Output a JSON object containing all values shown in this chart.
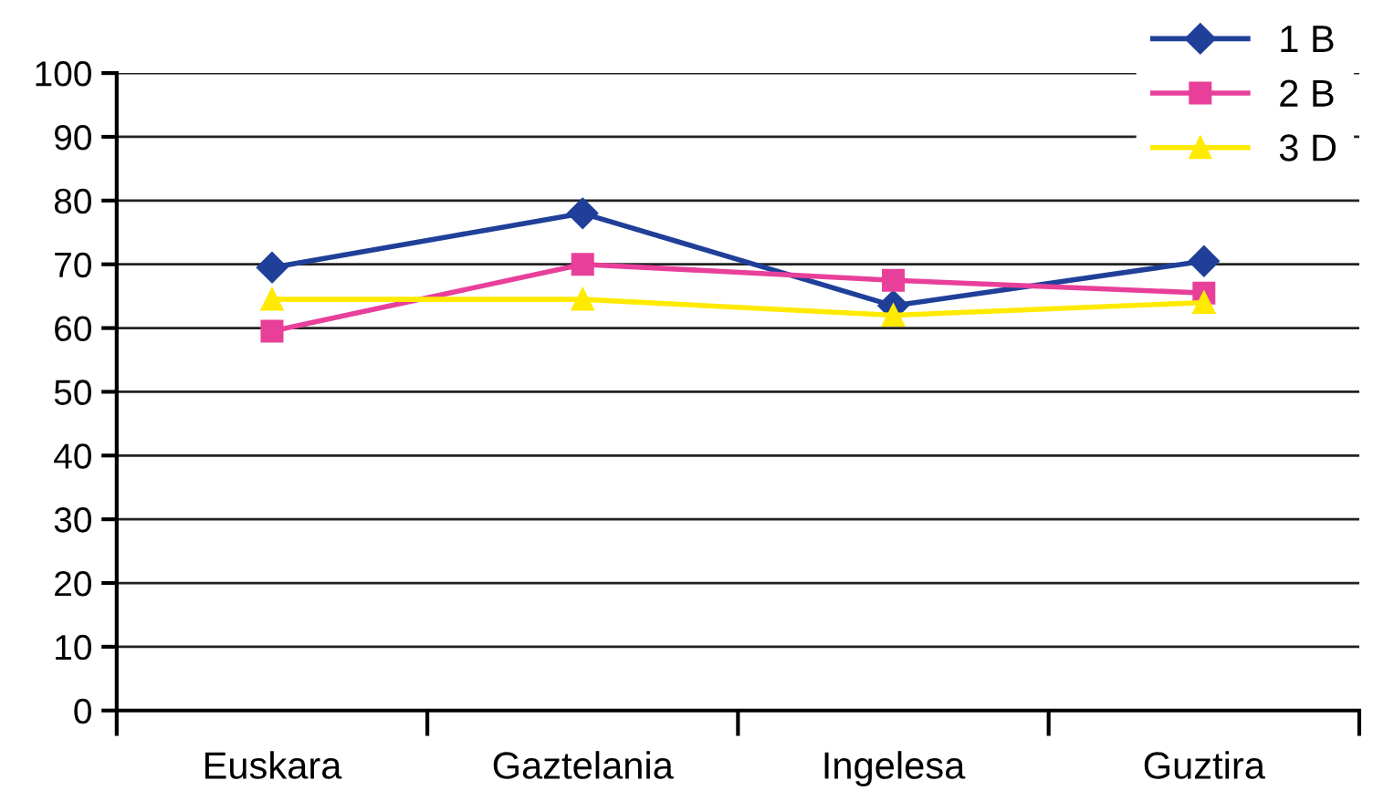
{
  "chart_data": {
    "type": "line",
    "categories": [
      "Euskara",
      "Gaztelania",
      "Ingelesa",
      "Guztira"
    ],
    "series": [
      {
        "name": "1 B",
        "color": "#1f3f99",
        "marker": "diamond",
        "values": [
          69.5,
          78,
          63.5,
          70.5
        ]
      },
      {
        "name": "2 B",
        "color": "#e8409a",
        "marker": "square",
        "values": [
          59.5,
          70,
          67.5,
          65.5
        ]
      },
      {
        "name": "3 D",
        "color": "#ffea00",
        "marker": "triangle",
        "values": [
          64.5,
          64.5,
          62,
          64
        ]
      }
    ],
    "ylim": [
      0,
      100
    ],
    "yticks": [
      0,
      10,
      20,
      30,
      40,
      50,
      60,
      70,
      80,
      90,
      100
    ],
    "grid": "y",
    "legend": "top right",
    "line_style": "solid"
  }
}
